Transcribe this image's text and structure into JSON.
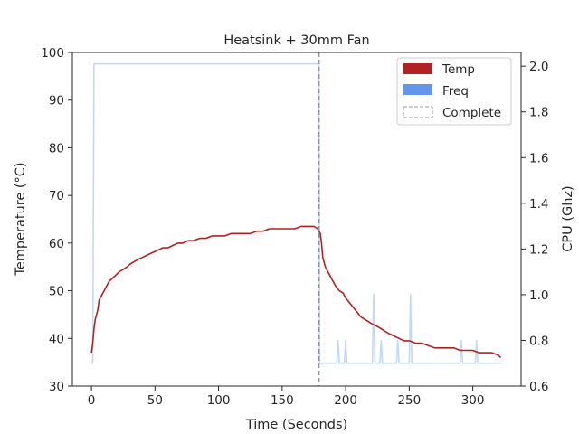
{
  "chart_data": {
    "type": "line",
    "title": "Heatsink + 30mm Fan",
    "xlabel": "Time (Seconds)",
    "ylabel_left": "Temperature (°C)",
    "ylabel_right": "CPU (Ghz)",
    "xlim": [
      -15,
      338
    ],
    "ylim_left": [
      30,
      100
    ],
    "ylim_right": [
      0.6,
      2.06
    ],
    "x_ticks": [
      0,
      50,
      100,
      150,
      200,
      250,
      300
    ],
    "y_ticks_left": [
      30,
      40,
      50,
      60,
      70,
      80,
      90,
      100
    ],
    "y_ticks_right": [
      "0.6",
      "0.8",
      "1.0",
      "1.2",
      "1.4",
      "1.6",
      "1.8",
      "2.0"
    ],
    "grid": false,
    "legend": {
      "position": "top-right",
      "entries": [
        {
          "label": "Temp",
          "kind": "patch",
          "color": "#b22222"
        },
        {
          "label": "Freq",
          "kind": "patch",
          "color": "#6495ed"
        },
        {
          "label": "Complete",
          "kind": "dashed",
          "color": "#999999"
        }
      ]
    },
    "complete_marker": {
      "x": 179,
      "color": "#8a93a6"
    },
    "series": [
      {
        "name": "Temp",
        "axis": "left",
        "color": "#b22222",
        "points": [
          [
            0,
            37
          ],
          [
            1,
            39
          ],
          [
            2,
            42
          ],
          [
            3,
            44
          ],
          [
            4,
            45
          ],
          [
            5,
            46
          ],
          [
            6,
            48
          ],
          [
            8,
            49
          ],
          [
            10,
            50
          ],
          [
            12,
            51
          ],
          [
            14,
            52
          ],
          [
            16,
            52.5
          ],
          [
            18,
            53
          ],
          [
            20,
            53.5
          ],
          [
            22,
            54
          ],
          [
            25,
            54.5
          ],
          [
            28,
            55
          ],
          [
            30,
            55.5
          ],
          [
            33,
            56
          ],
          [
            36,
            56.5
          ],
          [
            40,
            57
          ],
          [
            44,
            57.5
          ],
          [
            48,
            58
          ],
          [
            52,
            58.5
          ],
          [
            56,
            59
          ],
          [
            60,
            59
          ],
          [
            64,
            59.5
          ],
          [
            68,
            60
          ],
          [
            72,
            60
          ],
          [
            76,
            60.5
          ],
          [
            80,
            60.5
          ],
          [
            85,
            61
          ],
          [
            90,
            61
          ],
          [
            95,
            61.5
          ],
          [
            100,
            61.5
          ],
          [
            105,
            61.5
          ],
          [
            110,
            62
          ],
          [
            115,
            62
          ],
          [
            120,
            62
          ],
          [
            125,
            62
          ],
          [
            130,
            62.5
          ],
          [
            135,
            62.5
          ],
          [
            140,
            63
          ],
          [
            145,
            63
          ],
          [
            150,
            63
          ],
          [
            155,
            63
          ],
          [
            160,
            63
          ],
          [
            165,
            63.5
          ],
          [
            170,
            63.5
          ],
          [
            175,
            63.5
          ],
          [
            178,
            63
          ],
          [
            180,
            62
          ],
          [
            181,
            60
          ],
          [
            182,
            57
          ],
          [
            184,
            55
          ],
          [
            186,
            54
          ],
          [
            188,
            53
          ],
          [
            190,
            52
          ],
          [
            192,
            51
          ],
          [
            195,
            50
          ],
          [
            198,
            49.5
          ],
          [
            200,
            48.5
          ],
          [
            203,
            47.5
          ],
          [
            206,
            46.5
          ],
          [
            209,
            45.5
          ],
          [
            212,
            44.5
          ],
          [
            215,
            44
          ],
          [
            218,
            43.5
          ],
          [
            221,
            43
          ],
          [
            225,
            42.5
          ],
          [
            228,
            42
          ],
          [
            231,
            41.5
          ],
          [
            234,
            41
          ],
          [
            238,
            40.5
          ],
          [
            242,
            40
          ],
          [
            246,
            39.5
          ],
          [
            250,
            39.5
          ],
          [
            255,
            39
          ],
          [
            260,
            39
          ],
          [
            265,
            38.5
          ],
          [
            270,
            38
          ],
          [
            275,
            38
          ],
          [
            280,
            38
          ],
          [
            285,
            38
          ],
          [
            290,
            37.5
          ],
          [
            295,
            37.5
          ],
          [
            300,
            37.5
          ],
          [
            305,
            37
          ],
          [
            310,
            37
          ],
          [
            315,
            37
          ],
          [
            320,
            36.5
          ],
          [
            322,
            36
          ]
        ]
      },
      {
        "name": "Freq",
        "axis": "right",
        "color": "#c5d8f2",
        "points": [
          [
            0,
            0.7
          ],
          [
            1,
            0.7
          ],
          [
            2,
            2.01
          ],
          [
            179,
            2.01
          ],
          [
            179.5,
            0.7
          ],
          [
            193,
            0.7
          ],
          [
            194,
            0.8
          ],
          [
            195,
            0.7
          ],
          [
            199,
            0.7
          ],
          [
            200,
            0.8
          ],
          [
            201,
            0.7
          ],
          [
            221,
            0.7
          ],
          [
            222,
            1.0
          ],
          [
            223,
            0.7
          ],
          [
            227,
            0.7
          ],
          [
            228,
            0.8
          ],
          [
            229,
            0.7
          ],
          [
            240,
            0.7
          ],
          [
            241,
            0.8
          ],
          [
            242,
            0.7
          ],
          [
            250,
            0.7
          ],
          [
            251,
            1.0
          ],
          [
            252,
            0.7
          ],
          [
            290,
            0.7
          ],
          [
            291,
            0.8
          ],
          [
            292,
            0.7
          ],
          [
            302,
            0.7
          ],
          [
            303,
            0.8
          ],
          [
            304,
            0.7
          ],
          [
            323,
            0.7
          ]
        ]
      }
    ]
  }
}
